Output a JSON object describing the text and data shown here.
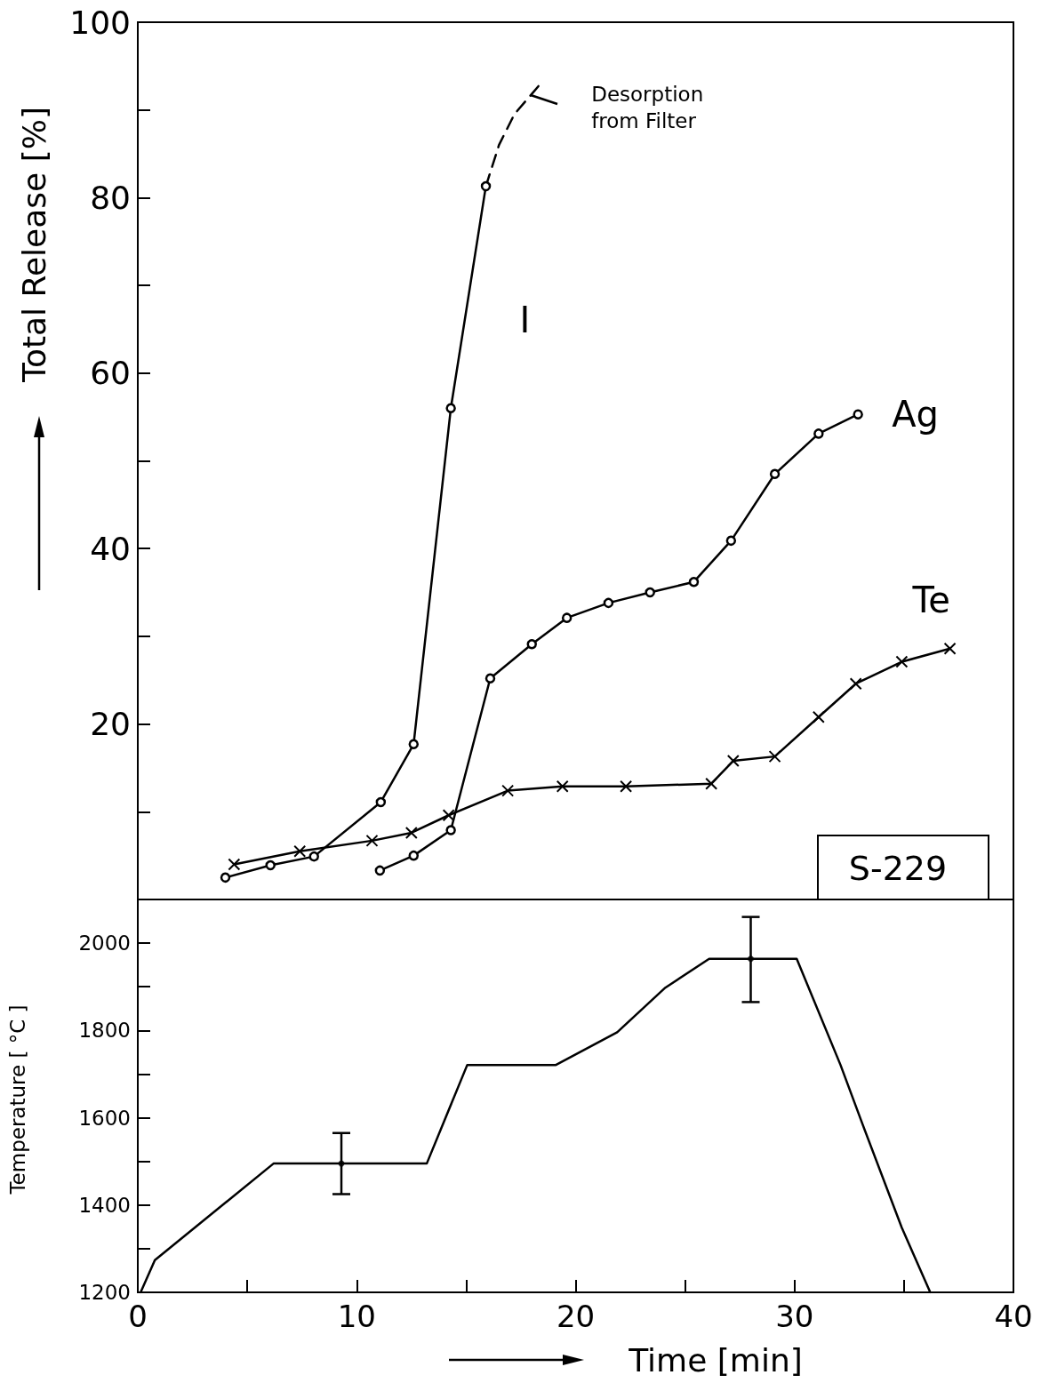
{
  "chart_data": [
    {
      "type": "line",
      "ylabel": "Total Release [%]",
      "xlim": [
        0,
        40
      ],
      "ylim": [
        0,
        100
      ],
      "yticks": [
        {
          "value": 10,
          "label": null
        },
        20,
        {
          "value": 30,
          "label": null
        },
        40,
        {
          "value": 50,
          "label": null
        },
        60,
        {
          "value": 70,
          "label": null
        },
        80,
        {
          "value": 90,
          "label": null
        },
        100
      ],
      "tick_labels": "y",
      "grid": false,
      "legend": false,
      "line_style": "solid",
      "annotations": [
        {
          "text": "Desorption from Filter",
          "x": 18.2,
          "y": 91.5
        },
        "S-229"
      ],
      "series": [
        {
          "name": "I",
          "color": "#000000",
          "marker": "circle",
          "x": [
            4.0,
            6.06,
            8.05,
            11.1,
            12.6,
            14.3,
            15.9
          ],
          "values": [
            2.5,
            3.9,
            4.9,
            11.1,
            17.7,
            56,
            81.3
          ]
        },
        {
          "color": "#000000",
          "marker": "none",
          "line_style": "dashed",
          "x": [
            15.9,
            16.5,
            17.2,
            18.4
          ],
          "values": [
            81.3,
            86,
            89.5,
            93
          ]
        },
        {
          "name": "Ag",
          "color": "#000000",
          "marker": "circle",
          "x": [
            11.06,
            12.6,
            14.3,
            16.1,
            18.0,
            19.6,
            21.5,
            23.4,
            25.4,
            27.1,
            29.1,
            31.1,
            32.9
          ],
          "values": [
            3.3,
            5.0,
            7.9,
            25.2,
            29.1,
            32.1,
            33.8,
            35.0,
            36.2,
            40.9,
            48.5,
            53.1,
            55.3
          ]
        },
        {
          "name": "Te",
          "color": "#000000",
          "marker": "cross",
          "x": [
            4.4,
            7.4,
            10.7,
            12.5,
            14.2,
            16.9,
            19.4,
            22.3,
            26.2,
            27.2,
            29.1,
            31.1,
            32.8,
            34.9,
            37.1
          ],
          "values": [
            4.0,
            5.5,
            6.7,
            7.6,
            9.6,
            12.4,
            12.9,
            12.9,
            13.2,
            15.8,
            16.3,
            20.8,
            24.6,
            27.1,
            28.6
          ]
        }
      ]
    },
    {
      "type": "line",
      "xlabel": "Time [min]",
      "ylabel": "Temperature [ °C ]",
      "xlim": [
        0,
        40
      ],
      "xticks": [
        0,
        {
          "value": 5,
          "label": null
        },
        10,
        {
          "value": 15,
          "label": null
        },
        20,
        {
          "value": 25,
          "label": null
        },
        30,
        {
          "value": 35,
          "label": null
        },
        40
      ],
      "ylim": [
        1200,
        2100
      ],
      "yticks": [
        1200,
        {
          "value": 1300,
          "label": null
        },
        1400,
        {
          "value": 1500,
          "label": null
        },
        1600,
        {
          "value": 1700,
          "label": null
        },
        1800,
        {
          "value": 1900,
          "label": null
        },
        2000
      ],
      "grid": false,
      "legend": false,
      "line_style": "solid",
      "series": [
        {
          "color": "#000000",
          "marker": "none",
          "x": [
            0.13,
            0.78,
            6.2,
            13.2,
            15.05,
            19.1,
            21.9,
            24.1,
            26.1,
            30.1,
            32.1,
            33.1,
            34.9,
            36.2
          ],
          "values": [
            1200,
            1274,
            1495,
            1495,
            1721,
            1721,
            1796,
            1898,
            1964,
            1964,
            1721,
            1586,
            1348,
            1200
          ]
        },
        {
          "type": "scatter",
          "color": "#000000",
          "marker": "circle",
          "x": [
            9.3,
            28.0
          ],
          "values": [
            1495,
            1964
          ],
          "errors": [
            [
              1425,
              1565
            ],
            [
              1865,
              2060
            ]
          ]
        }
      ]
    }
  ]
}
